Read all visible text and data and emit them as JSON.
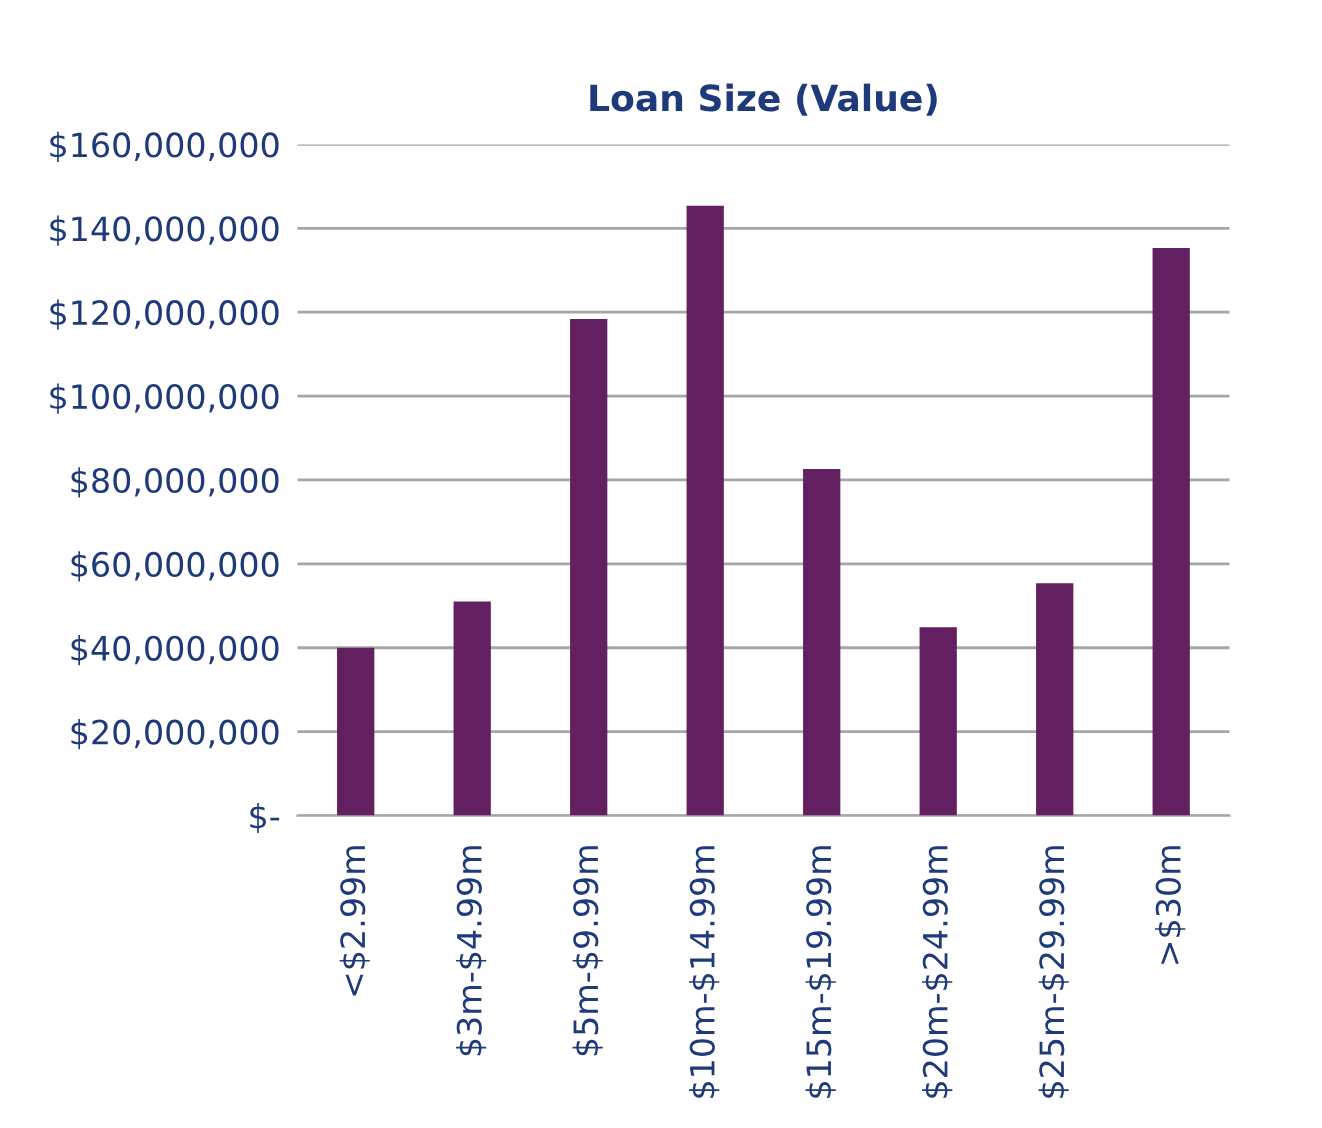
{
  "chart_data": {
    "type": "bar",
    "title": "Loan Size (Value)",
    "categories": [
      "<$2.99m",
      "$3m-$4.99m",
      "$5m-$9.99m",
      "$10m-$14.99m",
      "$15m-$19.99m",
      "$20m-$24.99m",
      "$25m-$29.99m",
      ">$30m"
    ],
    "values": [
      40000000,
      51000000,
      118400000,
      145400000,
      82600000,
      44900000,
      55400000,
      135300000
    ],
    "color": "#632060",
    "ylim": [
      0,
      160000000
    ],
    "yticks": [
      {
        "value": 0,
        "label": "$-"
      },
      {
        "value": 20000000,
        "label": "$20,000,000"
      },
      {
        "value": 40000000,
        "label": "$40,000,000"
      },
      {
        "value": 60000000,
        "label": "$60,000,000"
      },
      {
        "value": 80000000,
        "label": "$80,000,000"
      },
      {
        "value": 100000000,
        "label": "$100,000,000"
      },
      {
        "value": 120000000,
        "label": "$120,000,000"
      },
      {
        "value": 140000000,
        "label": "$140,000,000"
      },
      {
        "value": 160000000,
        "label": "$160,000,000"
      }
    ],
    "grid": "y",
    "legend": false
  }
}
